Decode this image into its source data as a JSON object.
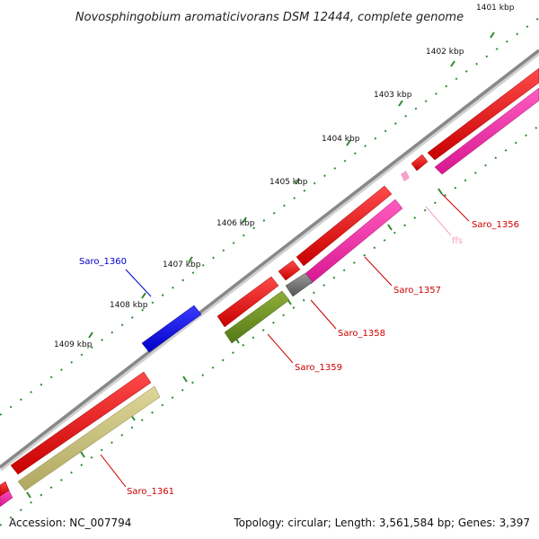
{
  "title": "Novosphingobium aromaticivorans DSM 12444, complete genome",
  "tick_labels": [
    "1401 kbp",
    "1402 kbp",
    "1403 kbp",
    "1404 kbp",
    "1405 kbp",
    "1406 kbp",
    "1407 kbp",
    "1408 kbp",
    "1409 kbp"
  ],
  "genes": [
    {
      "id": "saro-1356",
      "label": "Saro_1356",
      "color": "#cc0000"
    },
    {
      "id": "ffs",
      "label": "ffs",
      "color": "#f4a0c8"
    },
    {
      "id": "saro-1357",
      "label": "Saro_1357",
      "color": "#cc0000"
    },
    {
      "id": "saro-1358",
      "label": "Saro_1358",
      "color": "#cc0000"
    },
    {
      "id": "saro-1359",
      "label": "Saro_1359",
      "color": "#cc0000"
    },
    {
      "id": "saro-1360",
      "label": "Saro_1360",
      "color": "#0000cc"
    },
    {
      "id": "saro-1361",
      "label": "Saro_1361",
      "color": "#cc0000"
    }
  ],
  "footer": {
    "accession": "Accession: NC_007794",
    "summary": "Topology: circular; Length: 3,561,584 bp; Genes: 3,397"
  },
  "colors": {
    "backbone": "#888888",
    "gene_red": "#ee0000",
    "gene_magenta": "#ee1fa0",
    "gene_blue": "#0000ee",
    "gene_olive": "#6b8e23",
    "gene_khaki": "#c8c07a",
    "gene_gray": "#707070",
    "tick_green": "#2e8b2e"
  }
}
